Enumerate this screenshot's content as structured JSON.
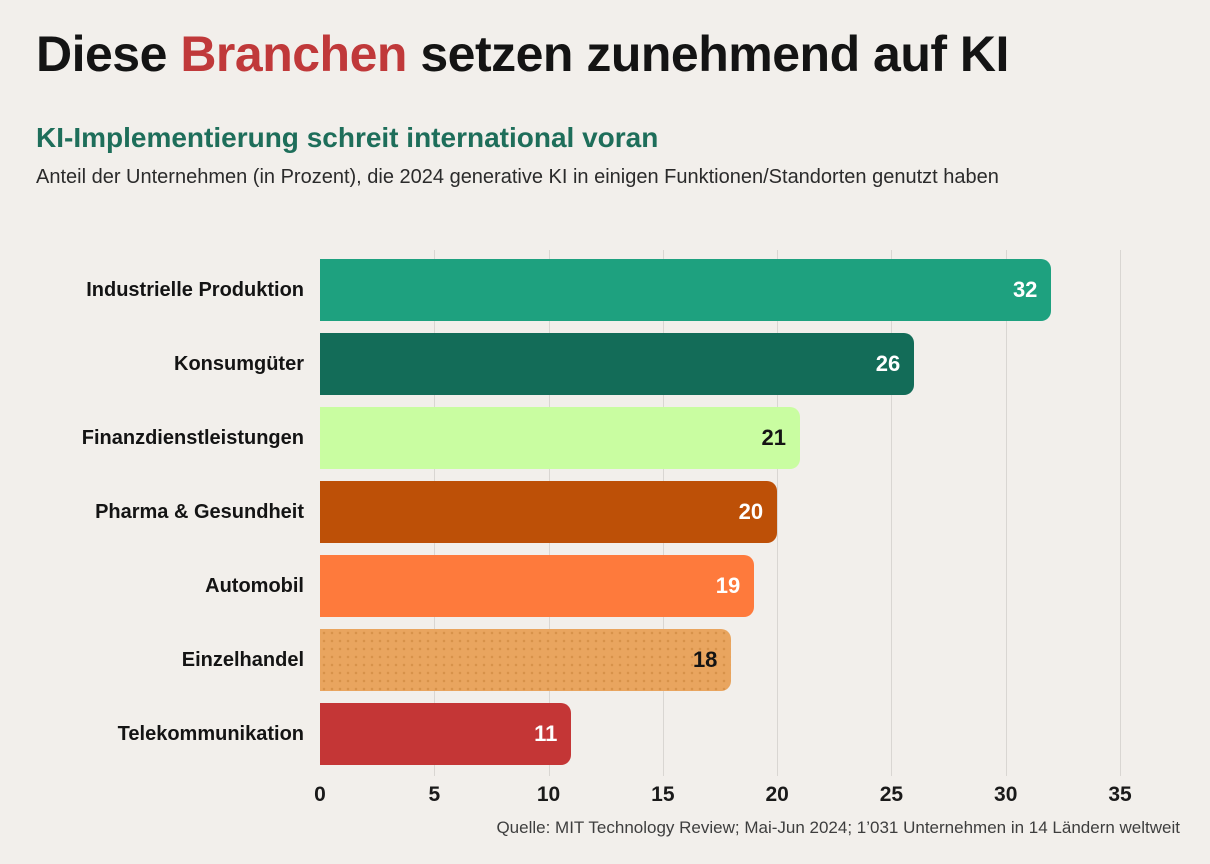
{
  "header": {
    "title_prefix": "Diese ",
    "title_highlight": "Branchen",
    "title_suffix": " setzen zunehmend auf KI",
    "subtitle": "KI-Implementierung schreit international voran",
    "description": "Anteil der Unternehmen (in Prozent), die 2024 generative KI in einigen Funktionen/Standorten genutzt haben"
  },
  "footer": {
    "source": "Quelle: MIT Technology Review; Mai-Jun 2024; 1’031 Unternehmen in 14 Ländern weltweit"
  },
  "colors": {
    "background": "#f2efeb",
    "title_text": "#141414",
    "title_accent_red": "#c0393a",
    "subtitle_green": "#1e6e5a",
    "gridline": "#d9d6d2",
    "tick_text": "#1a1a1a"
  },
  "chart_data": {
    "type": "bar",
    "orientation": "horizontal",
    "title": "Diese Branchen setzen zunehmend auf KI",
    "subtitle": "KI-Implementierung schreit international voran",
    "categories": [
      "Industrielle Produktion",
      "Konsumgüter",
      "Finanzdienstleistungen",
      "Pharma & Gesundheit",
      "Automobil",
      "Einzelhandel",
      "Telekommunikation"
    ],
    "values": [
      32,
      26,
      21,
      20,
      19,
      18,
      11
    ],
    "bar_colors": [
      "#1ea17f",
      "#136c58",
      "#c9fda1",
      "#bd5007",
      "#fe7a3c",
      "#e9a55f",
      "#c43636"
    ],
    "value_label_colors": [
      "#ffffff",
      "#ffffff",
      "#141414",
      "#ffffff",
      "#ffffff",
      "#141414",
      "#ffffff"
    ],
    "textured_bar_index": 5,
    "xlabel": "",
    "ylabel": "",
    "xlim": [
      0,
      35
    ],
    "xticks": [
      0,
      5,
      10,
      15,
      20,
      25,
      30,
      35
    ],
    "grid": true,
    "legend": false,
    "value_labels": "inside-right"
  }
}
